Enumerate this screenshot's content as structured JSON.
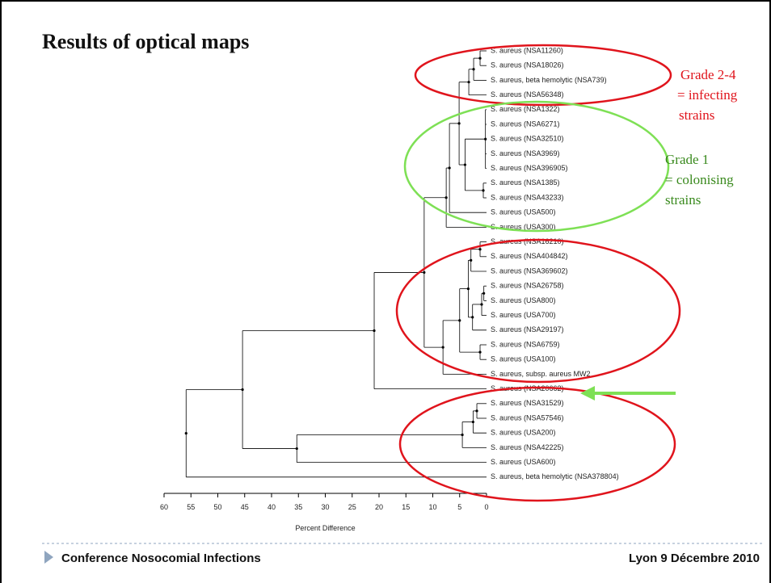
{
  "title": "Results of optical maps",
  "axis": {
    "label": "Percent Difference",
    "xlim": [
      60,
      0
    ],
    "xticks": [
      60,
      55,
      50,
      45,
      40,
      35,
      30,
      25,
      20,
      15,
      10,
      5,
      0
    ]
  },
  "annotations": {
    "infecting": [
      "Grade 2-4",
      "= infecting",
      "strains"
    ],
    "colonising": [
      "Grade 1",
      "= colonising",
      "strains"
    ]
  },
  "footer": {
    "left": "Conference Nosocomial Infections",
    "right": "Lyon  9 Décembre 2010"
  },
  "tree": {
    "height": 55.9,
    "children": [
      {
        "height": 45.4,
        "children": [
          {
            "height": 20.9,
            "children": [
              {
                "height": 11.6,
                "children": [
                  {
                    "height": 7.5,
                    "children": [
                      {
                        "height": 6.9,
                        "children": [
                          {
                            "height": 5.1,
                            "children": [
                              {
                                "height": 3.3,
                                "children": [
                                  {
                                    "height": 2.4,
                                    "children": [
                                      {
                                        "height": 1.2,
                                        "children": [
                                          {
                                            "label": "S. aureus (NSA11260)"
                                          },
                                          {
                                            "label": "S. aureus (NSA18026)"
                                          }
                                        ]
                                      },
                                      {
                                        "label": "S. aureus, beta hemolytic (NSA739)"
                                      }
                                    ]
                                  },
                                  {
                                    "label": "S. aureus (NSA56348)"
                                  }
                                ]
                              },
                              {
                                "height": 4.0,
                                "children": [
                                  {
                                    "height": 0.2,
                                    "children": [
                                      {
                                        "label": "S. aureus (NSA1322)"
                                      },
                                      {
                                        "label": "S. aureus (NSA6271)"
                                      },
                                      {
                                        "label": "S. aureus (NSA32510)"
                                      },
                                      {
                                        "label": "S. aureus (NSA3969)"
                                      },
                                      {
                                        "label": "S. aureus (NSA396905)"
                                      }
                                    ]
                                  },
                                  {
                                    "height": 0.6,
                                    "children": [
                                      {
                                        "label": "S. aureus (NSA1385)"
                                      },
                                      {
                                        "label": "S. aureus (NSA43233)"
                                      }
                                    ]
                                  }
                                ]
                              }
                            ]
                          },
                          {
                            "label": "S. aureus (USA500)"
                          }
                        ]
                      },
                      {
                        "label": "S. aureus (USA300)"
                      }
                    ]
                  },
                  {
                    "height": 8.1,
                    "children": [
                      {
                        "height": 5.0,
                        "children": [
                          {
                            "height": 3.4,
                            "children": [
                              {
                                "height": 2.9,
                                "children": [
                                  {
                                    "height": 1.2,
                                    "children": [
                                      {
                                        "label": "S. aureus (NSA16210)"
                                      },
                                      {
                                        "label": "S. aureus (NSA404842)"
                                      }
                                    ]
                                  },
                                  {
                                    "label": "S. aureus (NSA369602)"
                                  }
                                ]
                              },
                              {
                                "height": 2.6,
                                "children": [
                                  {
                                    "height": 0.9,
                                    "children": [
                                      {
                                        "height": 0.5,
                                        "children": [
                                          {
                                            "label": "S. aureus (NSA26758)"
                                          },
                                          {
                                            "label": "S. aureus (USA800)"
                                          }
                                        ]
                                      },
                                      {
                                        "label": "S. aureus (USA700)"
                                      }
                                    ]
                                  },
                                  {
                                    "label": "S. aureus (NSA29197)"
                                  }
                                ]
                              }
                            ]
                          },
                          {
                            "height": 1.2,
                            "children": [
                              {
                                "label": "S. aureus (NSA6759)"
                              },
                              {
                                "label": "S. aureus (USA100)"
                              }
                            ]
                          }
                        ]
                      },
                      {
                        "label": "S. aureus, subsp. aureus MW2"
                      }
                    ]
                  }
                ]
              },
              {
                "label": "S. aureus (NSA20662)"
              }
            ]
          },
          {
            "height": 35.3,
            "children": [
              {
                "height": 4.5,
                "children": [
                  {
                    "height": 2.5,
                    "children": [
                      {
                        "height": 1.8,
                        "children": [
                          {
                            "label": "S. aureus (NSA31529)"
                          },
                          {
                            "label": "S. aureus (NSA57546)"
                          }
                        ]
                      },
                      {
                        "label": "S. aureus (USA200)"
                      }
                    ]
                  },
                  {
                    "label": "S. aureus (NSA42225)"
                  }
                ]
              },
              {
                "label": "S. aureus (USA600)"
              }
            ]
          }
        ]
      },
      {
        "label": "S. aureus, beta hemolytic (NSA378804)"
      }
    ]
  }
}
